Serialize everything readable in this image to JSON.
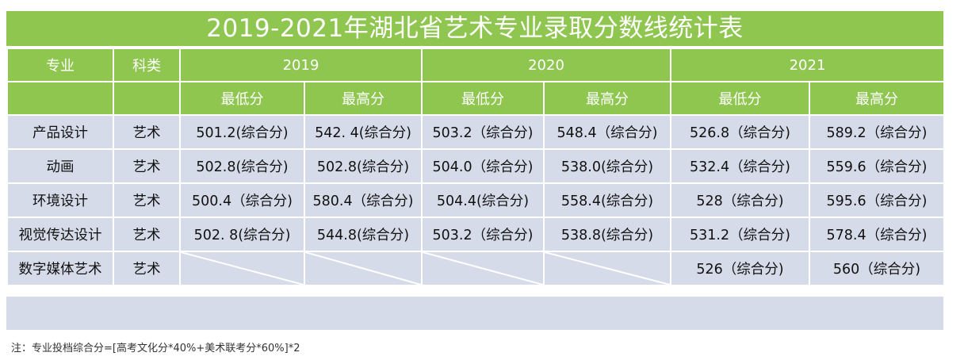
{
  "title": "2019-2021年湖北省艺术专业录取分数线统计表",
  "headers": {
    "major": "专业",
    "category": "科类",
    "years": [
      "2019",
      "2020",
      "2021"
    ],
    "min": "最低分",
    "max": "最高分"
  },
  "rows": [
    {
      "major": "产品设计",
      "category": "艺术",
      "cells": [
        "501.2(综合分)",
        "542. 4(综合分)",
        "503.2（综合分)",
        "548.4（综合分)",
        "526.8（综合分)",
        "589.2（综合分)"
      ]
    },
    {
      "major": "动画",
      "category": "艺术",
      "cells": [
        "502.8(综合分)",
        "502.8(综合分)",
        "504.0（综合分)",
        "538.0(综合分)",
        "532.4（综合分)",
        "559.6（综合分)"
      ]
    },
    {
      "major": "环境设计",
      "category": "艺术",
      "cells": [
        "500.4（综合分)",
        "580.4（综合分)",
        "504.4(综合分)",
        "558.4(综合分)",
        "528（综合分)",
        "595.6（综合分)"
      ]
    },
    {
      "major": "视觉传达设计",
      "category": "艺术",
      "cells": [
        "502. 8(综合分)",
        "544.8(综合分)",
        "503.2（综合分)",
        "538.8(综合分)",
        "531.2（综合分)",
        "578.4（综合分)"
      ]
    },
    {
      "major": "数字媒体艺术",
      "category": "艺术",
      "cells": [
        "",
        "",
        "",
        "",
        "526（综合分)",
        "560（综合分)"
      ]
    }
  ],
  "note": "注：专业投档综合分=[高考文化分*40%+美术联考分*60%]*2",
  "colors": {
    "header_green": "#8fc650",
    "row_blue": "#d6dbe9"
  }
}
